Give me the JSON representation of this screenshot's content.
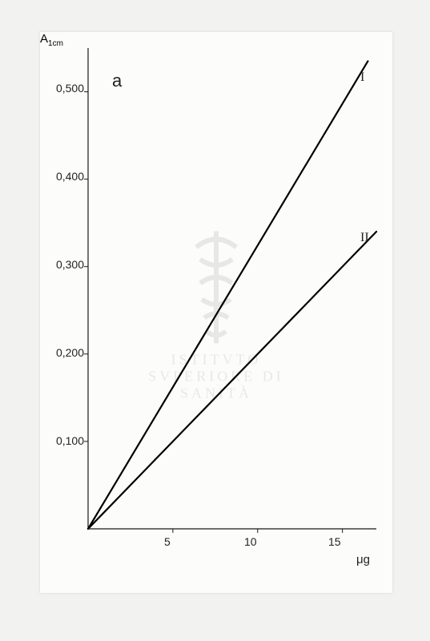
{
  "chart": {
    "type": "line",
    "panel_label": "a",
    "y_axis": {
      "title": "A",
      "subscript": "1cm",
      "ticks": [
        0.1,
        0.2,
        0.3,
        0.4,
        0.5
      ],
      "tick_labels": [
        "0,100",
        "0,200",
        "0,300",
        "0,400",
        "0,500"
      ],
      "min": 0,
      "max": 0.55
    },
    "x_axis": {
      "title": "μg",
      "ticks": [
        5,
        10,
        15
      ],
      "tick_labels": [
        "5",
        "10",
        "15"
      ],
      "min": 0,
      "max": 17
    },
    "series": [
      {
        "label": "I",
        "points": [
          [
            0,
            0
          ],
          [
            16.5,
            0.535
          ]
        ],
        "color": "#000000",
        "line_width": 2.2
      },
      {
        "label": "II",
        "points": [
          [
            0,
            0
          ],
          [
            17,
            0.34
          ]
        ],
        "color": "#000000",
        "line_width": 2.2
      }
    ],
    "axis_color": "#1a1a1a",
    "axis_width": 1.2,
    "background_color": "#fcfcfa",
    "label_fontsize": 14,
    "panel_label_fontsize": 22
  },
  "watermark": {
    "text": "ISTITVTO SVPERIORE DI SANITÀ"
  }
}
